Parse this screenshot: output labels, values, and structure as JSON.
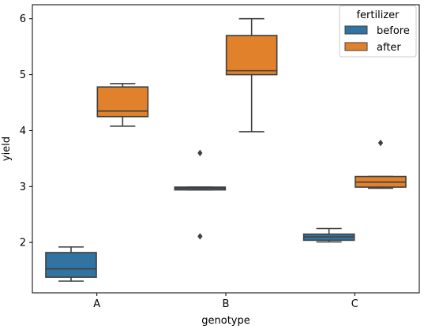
{
  "chart_data": {
    "type": "box",
    "xlabel": "genotype",
    "ylabel": "yield",
    "categories": [
      "A",
      "B",
      "C"
    ],
    "ylim": [
      1.1,
      6.25
    ],
    "yticks": [
      2,
      3,
      4,
      5,
      6
    ],
    "yticklabels": [
      "2",
      "3",
      "4",
      "5",
      "6"
    ],
    "legend": {
      "title": "fertilizer",
      "position": "top-right"
    },
    "series": [
      {
        "name": "before",
        "color": "#3274a1",
        "boxes": [
          {
            "category": "A",
            "whisker_low": 1.31,
            "q1": 1.38,
            "median": 1.53,
            "q3": 1.82,
            "whisker_high": 1.92,
            "outliers": []
          },
          {
            "category": "B",
            "whisker_low": 2.94,
            "q1": 2.94,
            "median": 2.97,
            "q3": 2.99,
            "whisker_high": 2.99,
            "outliers": [
              2.11,
              3.6
            ]
          },
          {
            "category": "C",
            "whisker_low": 2.01,
            "q1": 2.04,
            "median": 2.1,
            "q3": 2.15,
            "whisker_high": 2.25,
            "outliers": []
          }
        ]
      },
      {
        "name": "after",
        "color": "#e1812c",
        "boxes": [
          {
            "category": "A",
            "whisker_low": 4.08,
            "q1": 4.25,
            "median": 4.35,
            "q3": 4.78,
            "whisker_high": 4.84,
            "outliers": []
          },
          {
            "category": "B",
            "whisker_low": 3.98,
            "q1": 5.0,
            "median": 5.07,
            "q3": 5.7,
            "whisker_high": 6.0,
            "outliers": []
          },
          {
            "category": "C",
            "whisker_low": 2.97,
            "q1": 2.99,
            "median": 3.08,
            "q3": 3.18,
            "whisker_high": 3.18,
            "outliers": [
              3.78
            ]
          }
        ]
      }
    ]
  }
}
